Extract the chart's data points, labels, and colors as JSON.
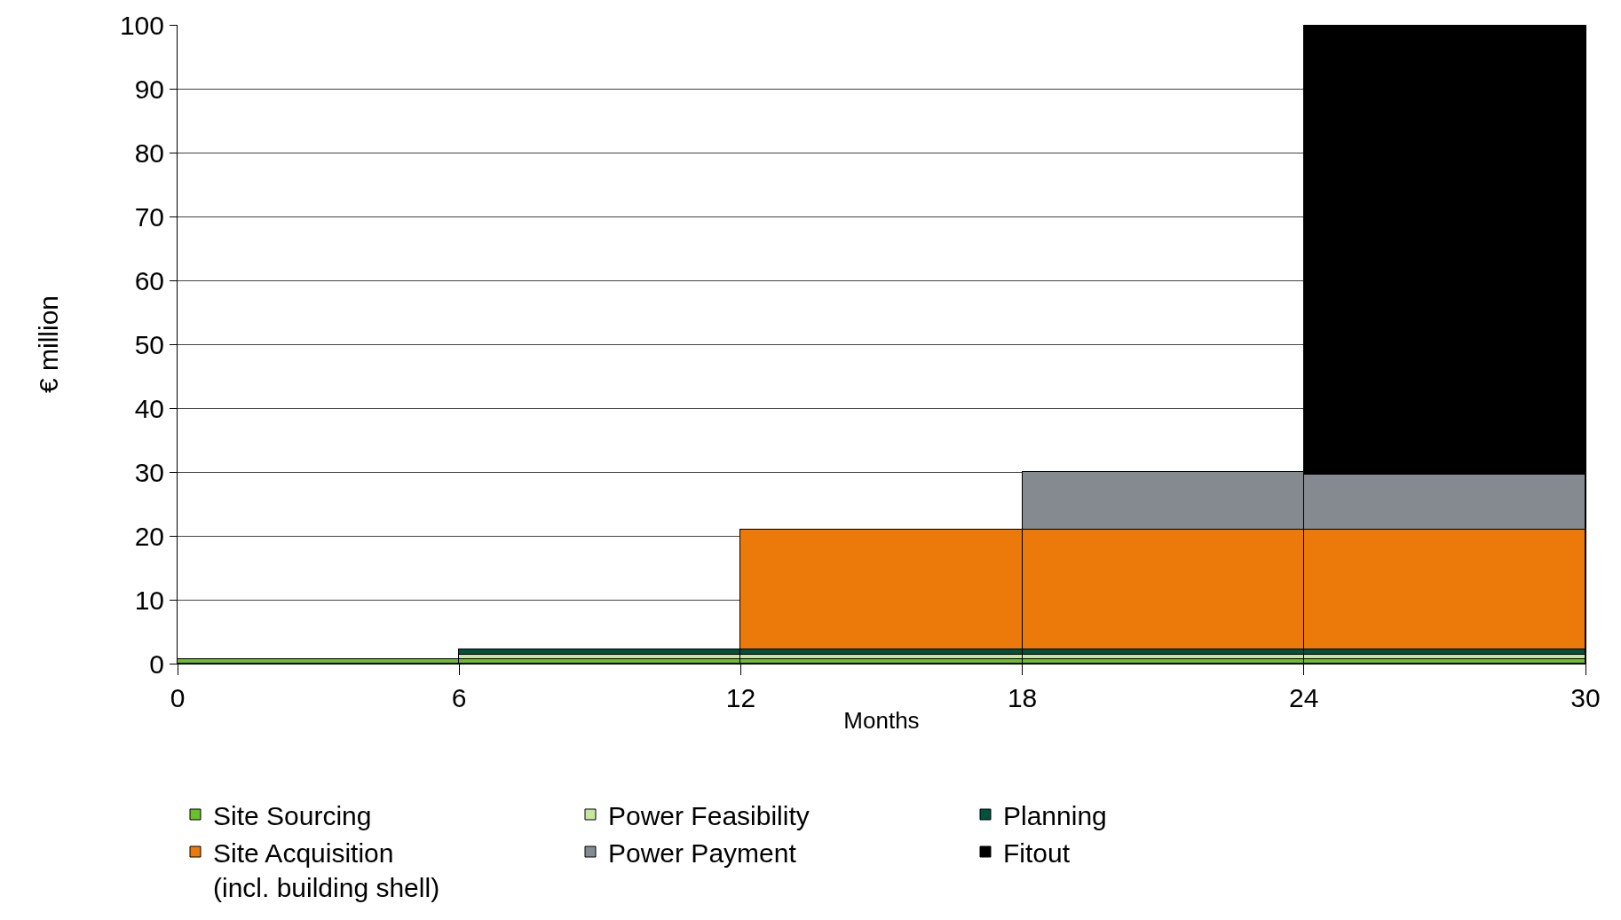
{
  "chart_data": {
    "type": "bar",
    "stacked": true,
    "xlabel": "Months",
    "ylabel": "€ million",
    "x": [
      3,
      9,
      15,
      21,
      27
    ],
    "xlim": [
      0,
      30
    ],
    "xticks": [
      0,
      6,
      12,
      18,
      24,
      30
    ],
    "ylim": [
      0,
      100
    ],
    "yticks": [
      0,
      10,
      20,
      30,
      40,
      50,
      60,
      70,
      80,
      90,
      100
    ],
    "grid": "y",
    "legend": "bottom",
    "series": [
      {
        "name": "Site Sourcing",
        "color": "#6bbf2a",
        "values": [
          0.7,
          0.7,
          0.7,
          0.7,
          0.7
        ]
      },
      {
        "name": "Power Feasibility",
        "color": "#c8e6a0",
        "values": [
          null,
          0.7,
          0.7,
          0.7,
          0.7
        ]
      },
      {
        "name": "Planning",
        "color": "#00533a",
        "values": [
          null,
          0.8,
          0.8,
          0.8,
          0.8
        ]
      },
      {
        "name": "Site Acquisition\n(incl. building shell)",
        "color": "#ec7a0b",
        "values": [
          null,
          null,
          18.8,
          18.8,
          18.8
        ]
      },
      {
        "name": "Power Payment",
        "color": "#848a90",
        "values": [
          null,
          null,
          null,
          9.0,
          8.6
        ]
      },
      {
        "name": "Fitout",
        "color": "#000000",
        "values": [
          null,
          null,
          null,
          null,
          70.4
        ]
      }
    ]
  }
}
